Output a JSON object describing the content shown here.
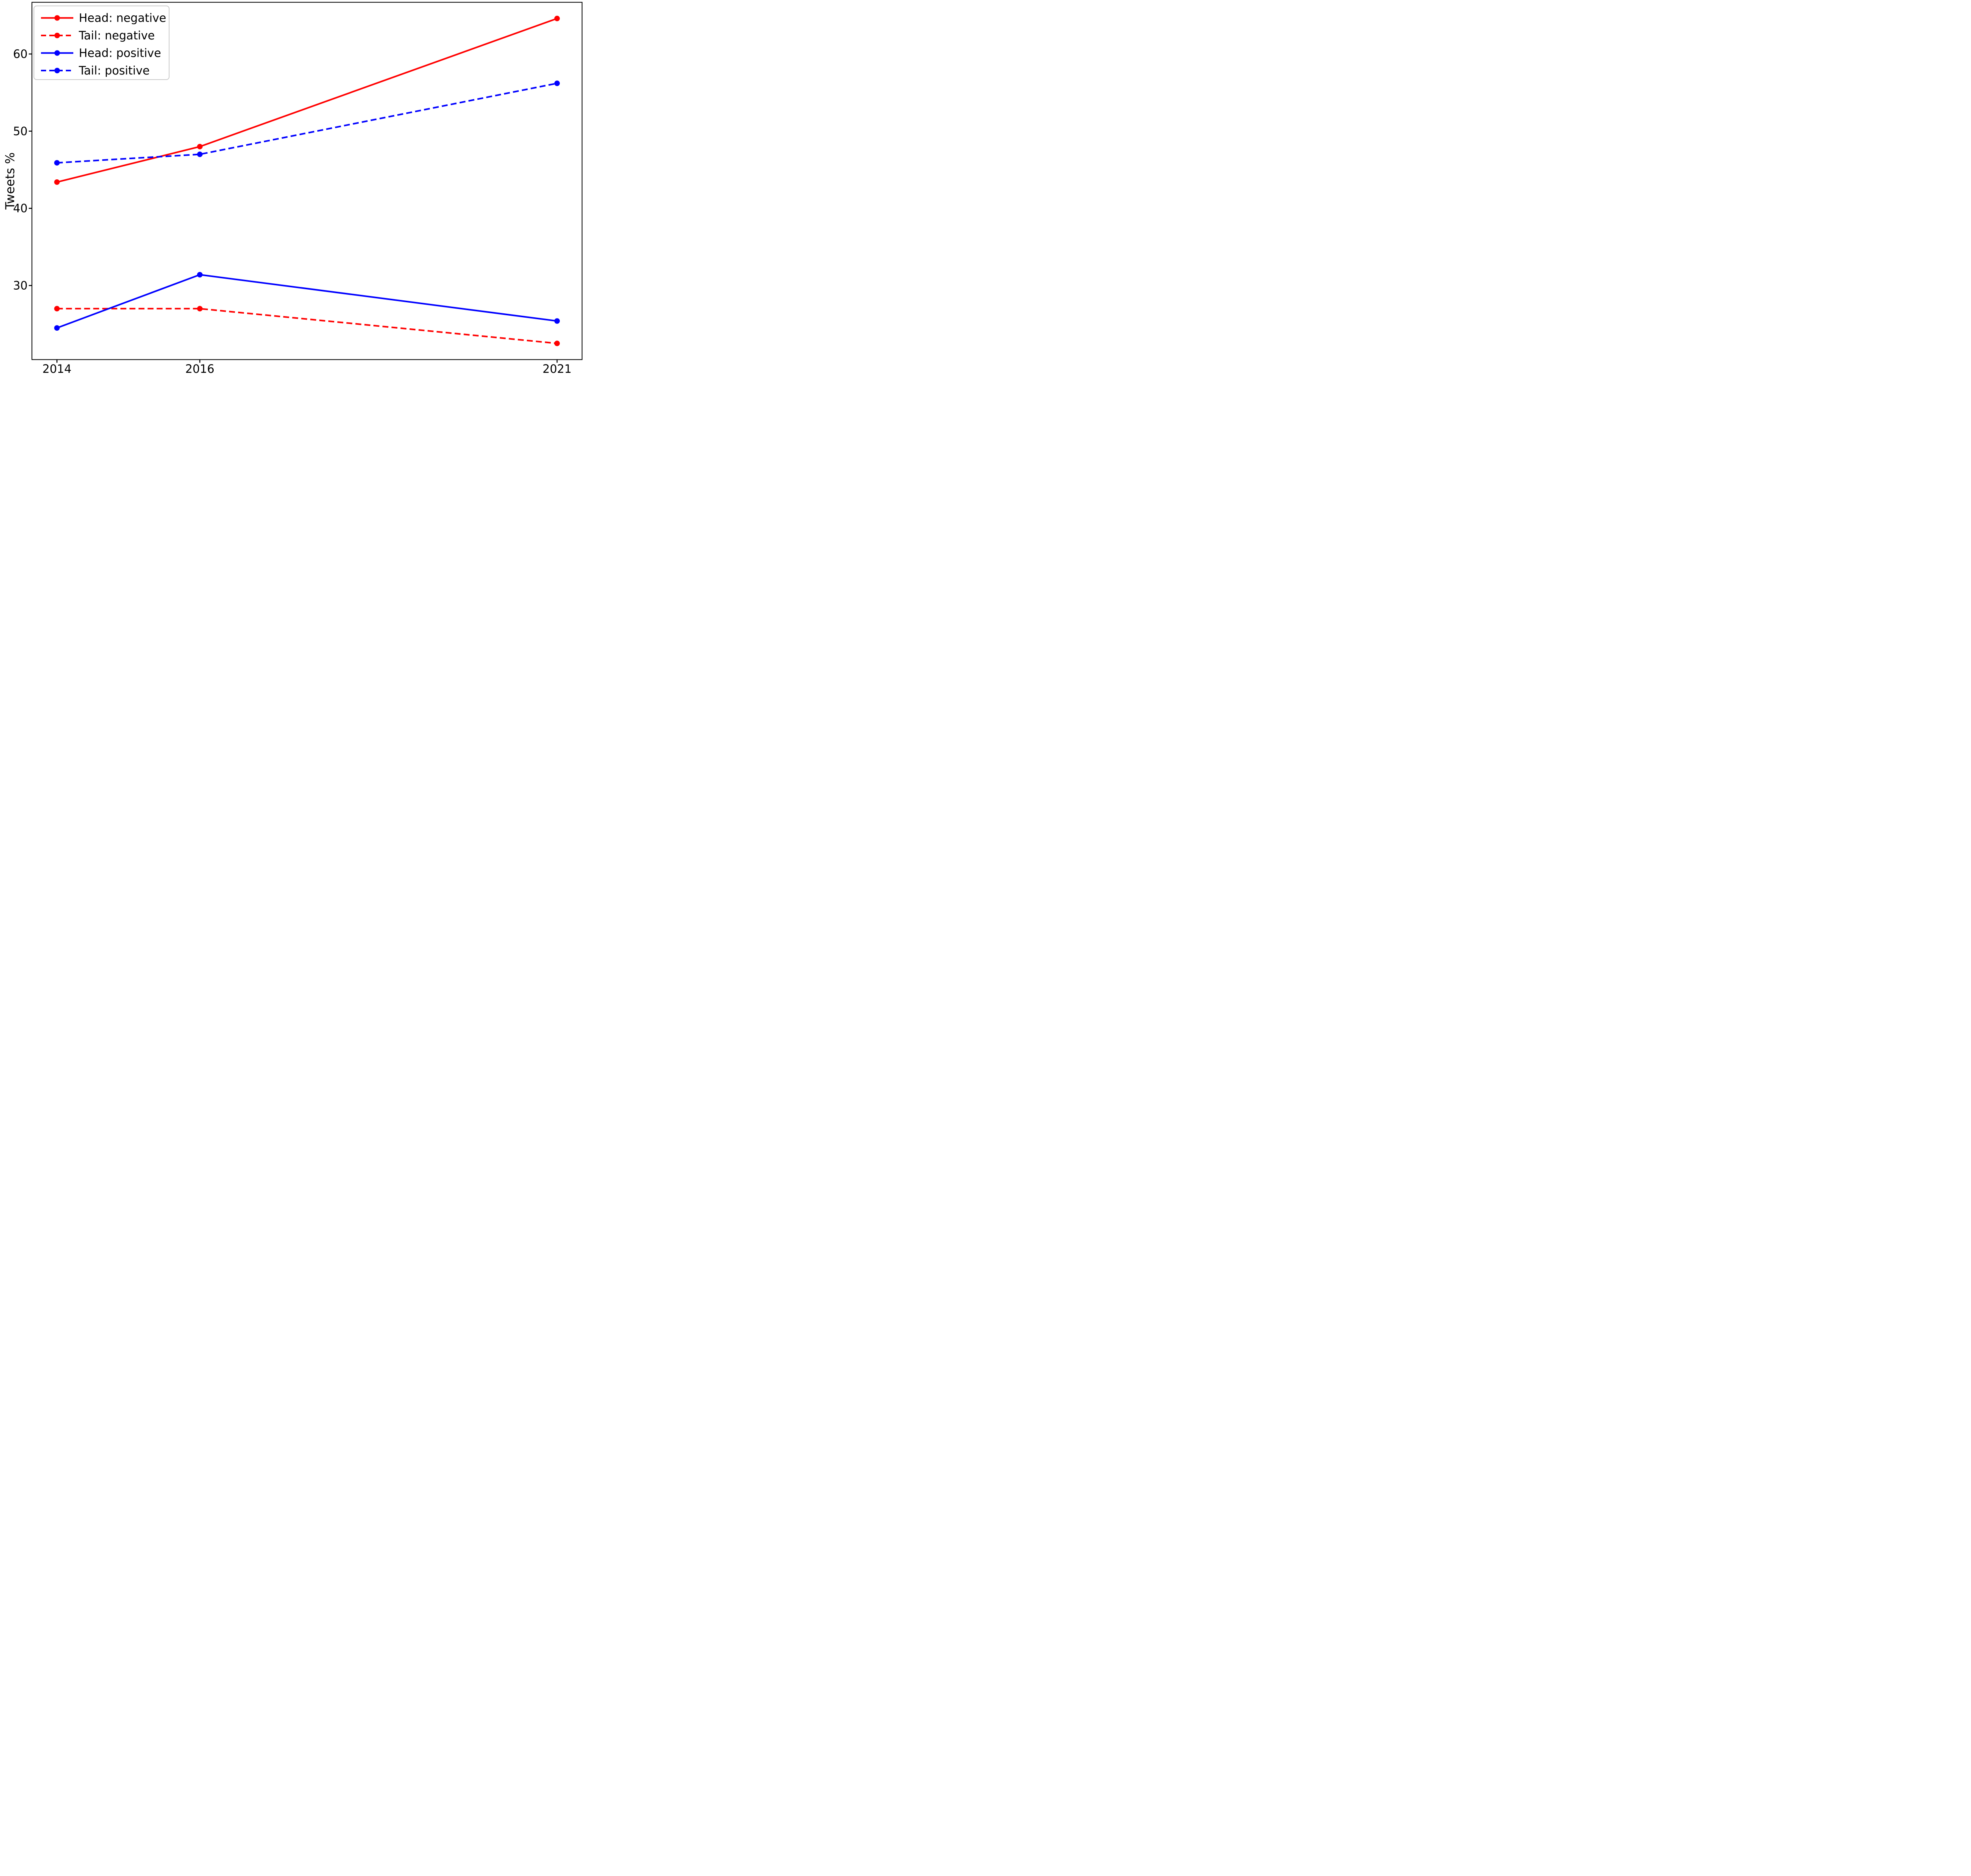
{
  "figure": {
    "background": "#ffffff",
    "axes_color": "#000000",
    "text_color": "#000000"
  },
  "chart_data": {
    "type": "line",
    "title": "",
    "xlabel": "",
    "ylabel": "Tweets %",
    "x": [
      2014,
      2016,
      2021
    ],
    "xtick_labels": [
      "2014",
      "2016",
      "2021"
    ],
    "yticks": [
      30,
      40,
      50,
      60
    ],
    "xlim": [
      2013.65,
      2021.35
    ],
    "ylim": [
      20.4,
      66.7
    ],
    "grid": false,
    "marker": "circle",
    "legend": {
      "position": "upper left",
      "border_color": "#cccccc",
      "background": "#ffffff"
    },
    "series": [
      {
        "name": "Head: negative",
        "color": "#ff0000",
        "linestyle": "solid",
        "values": [
          43.4,
          48.0,
          64.6
        ]
      },
      {
        "name": "Tail: negative",
        "color": "#ff0000",
        "linestyle": "dashed",
        "values": [
          27.0,
          27.0,
          22.5
        ]
      },
      {
        "name": "Head: positive",
        "color": "#0000ff",
        "linestyle": "solid",
        "values": [
          24.5,
          31.4,
          25.4
        ]
      },
      {
        "name": "Tail: positive",
        "color": "#0000ff",
        "linestyle": "dashed",
        "values": [
          45.9,
          47.0,
          56.2
        ]
      }
    ]
  }
}
